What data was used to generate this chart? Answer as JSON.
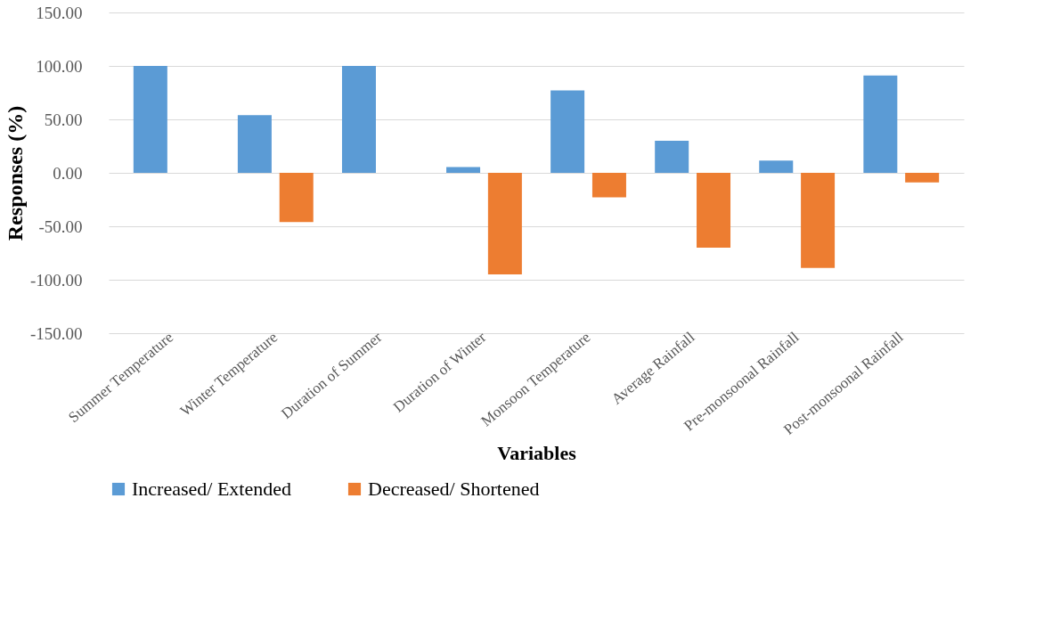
{
  "chart_data": {
    "type": "bar",
    "xlabel": "Variables",
    "ylabel": "Responses (%)",
    "categories": [
      "Summer Temperature",
      "Winter Temperature",
      "Duration of Summer",
      "Duration of Winter",
      "Monsoon Temperature",
      "Average Rainfall",
      "Pre-monsoonal Rainfall",
      "Post-monsoonal Rainfall"
    ],
    "series": [
      {
        "name": "Increased/ Extended",
        "color": "#5b9bd5",
        "values": [
          100,
          54,
          100,
          5.5,
          77,
          30,
          11.5,
          91
        ]
      },
      {
        "name": "Decreased/ Shortened",
        "color": "#ed7d31",
        "values": [
          0,
          -46,
          0,
          -95,
          -23,
          -70,
          -89,
          -9
        ]
      }
    ],
    "ylim": [
      -150,
      150
    ],
    "yticks": [
      {
        "value": -150,
        "label": "-150.00"
      },
      {
        "value": -100,
        "label": "-100.00"
      },
      {
        "value": -50,
        "label": "-50.00"
      },
      {
        "value": 0,
        "label": "0.00"
      },
      {
        "value": 50,
        "label": "50.00"
      },
      {
        "value": 100,
        "label": "100.00"
      },
      {
        "value": 150,
        "label": "150.00"
      }
    ],
    "grid": "y",
    "legend": "bottom"
  }
}
